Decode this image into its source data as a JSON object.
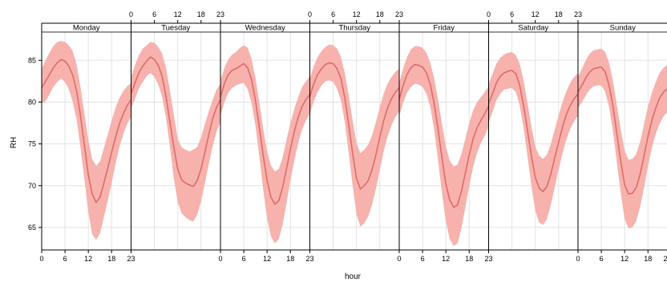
{
  "chart_data": {
    "type": "area",
    "xlabel": "hour",
    "ylabel": "RH",
    "panels": [
      "Monday",
      "Tuesday",
      "Wednesday",
      "Thursday",
      "Friday",
      "Saturday",
      "Sunday"
    ],
    "x_ticks": [
      0,
      6,
      12,
      18,
      23
    ],
    "y_ticks": [
      65,
      70,
      75,
      80,
      85
    ],
    "ylim": [
      61.5,
      89
    ],
    "xlim": [
      0,
      23
    ],
    "grid": true,
    "colors": {
      "line": "#e06a6a",
      "band": "#f7b2ad",
      "grid": "#e3e3e3",
      "strip": "#ffffff"
    },
    "x": [
      0,
      1,
      2,
      3,
      4,
      5,
      6,
      7,
      8,
      9,
      10,
      11,
      12,
      13,
      14,
      15,
      16,
      17,
      18,
      19,
      20,
      21,
      22,
      23
    ],
    "series": [
      {
        "panel": "Monday",
        "mean": [
          81.7,
          82.5,
          83.3,
          84.1,
          84.7,
          85.1,
          84.9,
          84.3,
          83.2,
          81.3,
          78.3,
          74.8,
          71.3,
          69.0,
          68.0,
          68.6,
          70.3,
          72.1,
          74.0,
          75.8,
          77.4,
          78.6,
          79.6,
          80.3
        ],
        "lower": [
          79.8,
          80.1,
          80.9,
          81.8,
          82.4,
          82.8,
          82.4,
          81.5,
          80.0,
          77.9,
          74.5,
          70.7,
          66.8,
          64.2,
          63.5,
          64.3,
          66.2,
          68.2,
          70.3,
          72.6,
          74.6,
          76.2,
          77.4,
          78.2
        ],
        "upper": [
          84.0,
          85.0,
          85.9,
          86.7,
          87.2,
          87.3,
          87.2,
          86.8,
          86.1,
          84.5,
          81.7,
          78.6,
          75.4,
          73.2,
          72.4,
          72.9,
          74.5,
          76.1,
          77.8,
          79.3,
          80.5,
          81.3,
          81.9,
          82.3
        ]
      },
      {
        "panel": "Tuesday",
        "mean": [
          81.0,
          82.3,
          83.5,
          84.3,
          84.9,
          85.4,
          85.1,
          84.4,
          83.1,
          80.6,
          77.6,
          74.6,
          72.0,
          70.7,
          70.3,
          70.1,
          69.9,
          70.6,
          72.0,
          74.0,
          76.1,
          78.0,
          79.4,
          80.3
        ],
        "lower": [
          79.2,
          80.4,
          81.6,
          82.4,
          83.1,
          83.5,
          83.0,
          82.1,
          80.6,
          78.1,
          74.6,
          70.9,
          68.0,
          66.7,
          66.2,
          65.9,
          65.7,
          66.5,
          68.1,
          70.3,
          72.6,
          74.7,
          76.5,
          77.6
        ],
        "upper": [
          83.0,
          84.4,
          85.6,
          86.4,
          86.8,
          87.2,
          87.1,
          86.6,
          85.8,
          84.1,
          81.4,
          78.5,
          75.6,
          74.6,
          74.3,
          74.1,
          74.3,
          74.6,
          75.8,
          77.4,
          78.9,
          80.3,
          81.5,
          82.2
        ]
      },
      {
        "panel": "Wednesday",
        "mean": [
          80.6,
          82.2,
          83.3,
          83.8,
          84.0,
          84.3,
          84.6,
          84.1,
          82.7,
          80.2,
          77.0,
          73.6,
          70.6,
          68.6,
          67.8,
          68.2,
          69.8,
          72.0,
          74.4,
          76.5,
          78.2,
          79.5,
          80.3,
          80.9
        ],
        "lower": [
          78.3,
          80.0,
          81.1,
          81.7,
          82.0,
          82.2,
          82.3,
          81.5,
          79.9,
          77.2,
          73.5,
          69.5,
          66.1,
          63.9,
          63.1,
          63.6,
          65.3,
          67.9,
          70.6,
          73.0,
          75.1,
          76.7,
          77.8,
          78.6
        ],
        "upper": [
          82.6,
          84.1,
          85.1,
          85.7,
          86.0,
          86.5,
          86.8,
          86.5,
          85.2,
          82.9,
          80.0,
          76.8,
          74.1,
          72.4,
          71.7,
          72.0,
          73.4,
          75.5,
          77.5,
          79.2,
          80.6,
          81.8,
          82.5,
          83.1
        ]
      },
      {
        "panel": "Thursday",
        "mean": [
          80.7,
          82.2,
          83.3,
          84.0,
          84.5,
          84.7,
          84.6,
          84.0,
          82.8,
          80.5,
          77.3,
          73.9,
          70.9,
          69.6,
          70.0,
          70.6,
          71.9,
          73.7,
          75.8,
          77.8,
          79.3,
          80.4,
          81.2,
          81.7
        ],
        "lower": [
          78.5,
          80.1,
          81.2,
          82.0,
          82.5,
          82.6,
          82.4,
          81.6,
          80.2,
          77.6,
          73.9,
          70.0,
          66.6,
          65.1,
          65.5,
          66.3,
          67.7,
          69.6,
          71.9,
          74.1,
          75.9,
          77.2,
          78.2,
          78.9
        ],
        "upper": [
          82.9,
          84.3,
          85.4,
          86.1,
          86.6,
          86.9,
          86.8,
          86.4,
          85.4,
          83.5,
          80.8,
          77.8,
          75.1,
          73.9,
          74.3,
          74.9,
          76.0,
          77.6,
          79.4,
          81.0,
          82.2,
          83.0,
          83.6,
          84.0
        ]
      },
      {
        "panel": "Friday",
        "mean": [
          80.3,
          82.0,
          83.3,
          84.1,
          84.5,
          84.4,
          84.2,
          83.5,
          82.1,
          79.8,
          76.7,
          73.3,
          70.2,
          68.3,
          67.4,
          67.7,
          69.3,
          71.5,
          73.7,
          75.6,
          76.9,
          77.8,
          78.6,
          79.5
        ],
        "lower": [
          78.3,
          79.9,
          81.1,
          81.8,
          82.2,
          82.1,
          81.8,
          81.0,
          79.4,
          76.7,
          73.0,
          69.1,
          65.7,
          63.6,
          62.8,
          63.1,
          64.9,
          67.4,
          69.9,
          72.2,
          73.9,
          75.1,
          76.0,
          77.0
        ],
        "upper": [
          82.3,
          84.0,
          85.4,
          86.3,
          86.7,
          86.7,
          86.5,
          85.9,
          84.7,
          82.8,
          80.3,
          77.4,
          74.7,
          73.0,
          72.3,
          72.5,
          73.8,
          75.6,
          77.5,
          79.0,
          80.0,
          80.6,
          81.2,
          81.9
        ]
      },
      {
        "panel": "Saturday",
        "mean": [
          79.8,
          81.0,
          82.3,
          83.1,
          83.5,
          83.7,
          83.8,
          83.4,
          82.0,
          79.6,
          76.6,
          73.6,
          71.0,
          69.7,
          69.3,
          69.9,
          71.4,
          73.3,
          75.2,
          77.0,
          78.5,
          79.6,
          80.4,
          81.0
        ],
        "lower": [
          77.5,
          78.8,
          80.2,
          81.0,
          81.5,
          81.6,
          81.7,
          81.2,
          79.6,
          76.9,
          73.5,
          70.0,
          67.0,
          65.6,
          65.3,
          66.0,
          67.7,
          69.8,
          71.9,
          73.9,
          75.5,
          76.8,
          77.7,
          78.4
        ],
        "upper": [
          82.1,
          83.4,
          84.6,
          85.3,
          85.7,
          85.9,
          86.0,
          85.6,
          84.6,
          82.6,
          79.9,
          77.1,
          74.7,
          73.6,
          73.2,
          73.7,
          75.0,
          76.7,
          78.4,
          80.0,
          81.3,
          82.3,
          83.0,
          83.5
        ]
      },
      {
        "panel": "Sunday",
        "mean": [
          81.2,
          82.0,
          82.9,
          83.6,
          84.0,
          84.1,
          84.2,
          83.6,
          82.0,
          79.5,
          76.2,
          72.9,
          70.1,
          69.0,
          69.1,
          69.8,
          71.4,
          73.6,
          75.9,
          77.8,
          79.3,
          80.5,
          81.2,
          81.6
        ],
        "lower": [
          79.3,
          80.0,
          80.8,
          81.5,
          81.9,
          82.0,
          82.0,
          81.2,
          79.4,
          76.5,
          72.8,
          69.1,
          66.0,
          64.9,
          65.0,
          65.8,
          67.5,
          69.8,
          72.3,
          74.5,
          76.2,
          77.4,
          78.3,
          78.8
        ],
        "upper": [
          83.0,
          84.0,
          85.0,
          85.8,
          86.2,
          86.3,
          86.4,
          86.0,
          84.7,
          82.5,
          79.6,
          76.7,
          74.2,
          73.1,
          73.2,
          73.8,
          75.3,
          77.4,
          79.5,
          81.1,
          82.4,
          83.5,
          84.1,
          84.5
        ]
      }
    ]
  }
}
